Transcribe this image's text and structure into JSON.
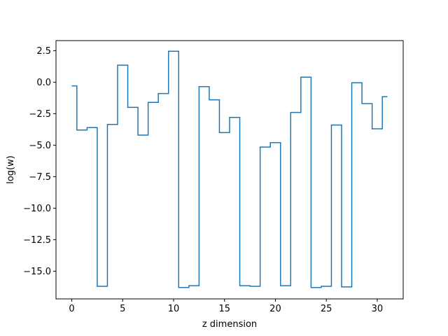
{
  "chart_data": {
    "type": "line",
    "drawstyle": "steps-mid",
    "title": "",
    "xlabel": "z dimension",
    "ylabel": "log(w)",
    "xlim": [
      -1.55,
      32.55
    ],
    "ylim": [
      -17.2,
      3.3
    ],
    "xticks": [
      0,
      5,
      10,
      15,
      20,
      25,
      30
    ],
    "xtick_labels": [
      "0",
      "5",
      "10",
      "15",
      "20",
      "25",
      "30"
    ],
    "yticks": [
      2.5,
      0.0,
      -2.5,
      -5.0,
      -7.5,
      -10.0,
      -12.5,
      -15.0
    ],
    "ytick_labels": [
      "2.5",
      "0.0",
      "−2.5",
      "−5.0",
      "−7.5",
      "−10.0",
      "−12.5",
      "−15.0"
    ],
    "grid": false,
    "legend": "none",
    "series": [
      {
        "color": "#1f77b4",
        "x": [
          0,
          1,
          2,
          3,
          4,
          5,
          6,
          7,
          8,
          9,
          10,
          11,
          12,
          13,
          14,
          15,
          16,
          17,
          18,
          19,
          20,
          21,
          22,
          23,
          24,
          25,
          26,
          27,
          28,
          29,
          30,
          31
        ],
        "values": [
          -0.3,
          -3.8,
          -3.6,
          -16.2,
          -3.35,
          1.35,
          -2.0,
          -4.2,
          -1.6,
          -0.9,
          2.45,
          -16.3,
          -16.15,
          -0.35,
          -1.4,
          -4.0,
          -2.8,
          -16.15,
          -16.2,
          -5.15,
          -4.8,
          -16.15,
          -2.4,
          0.4,
          -16.3,
          -16.2,
          -3.4,
          -16.25,
          -0.05,
          -1.7,
          -3.7,
          -1.15
        ]
      }
    ]
  }
}
